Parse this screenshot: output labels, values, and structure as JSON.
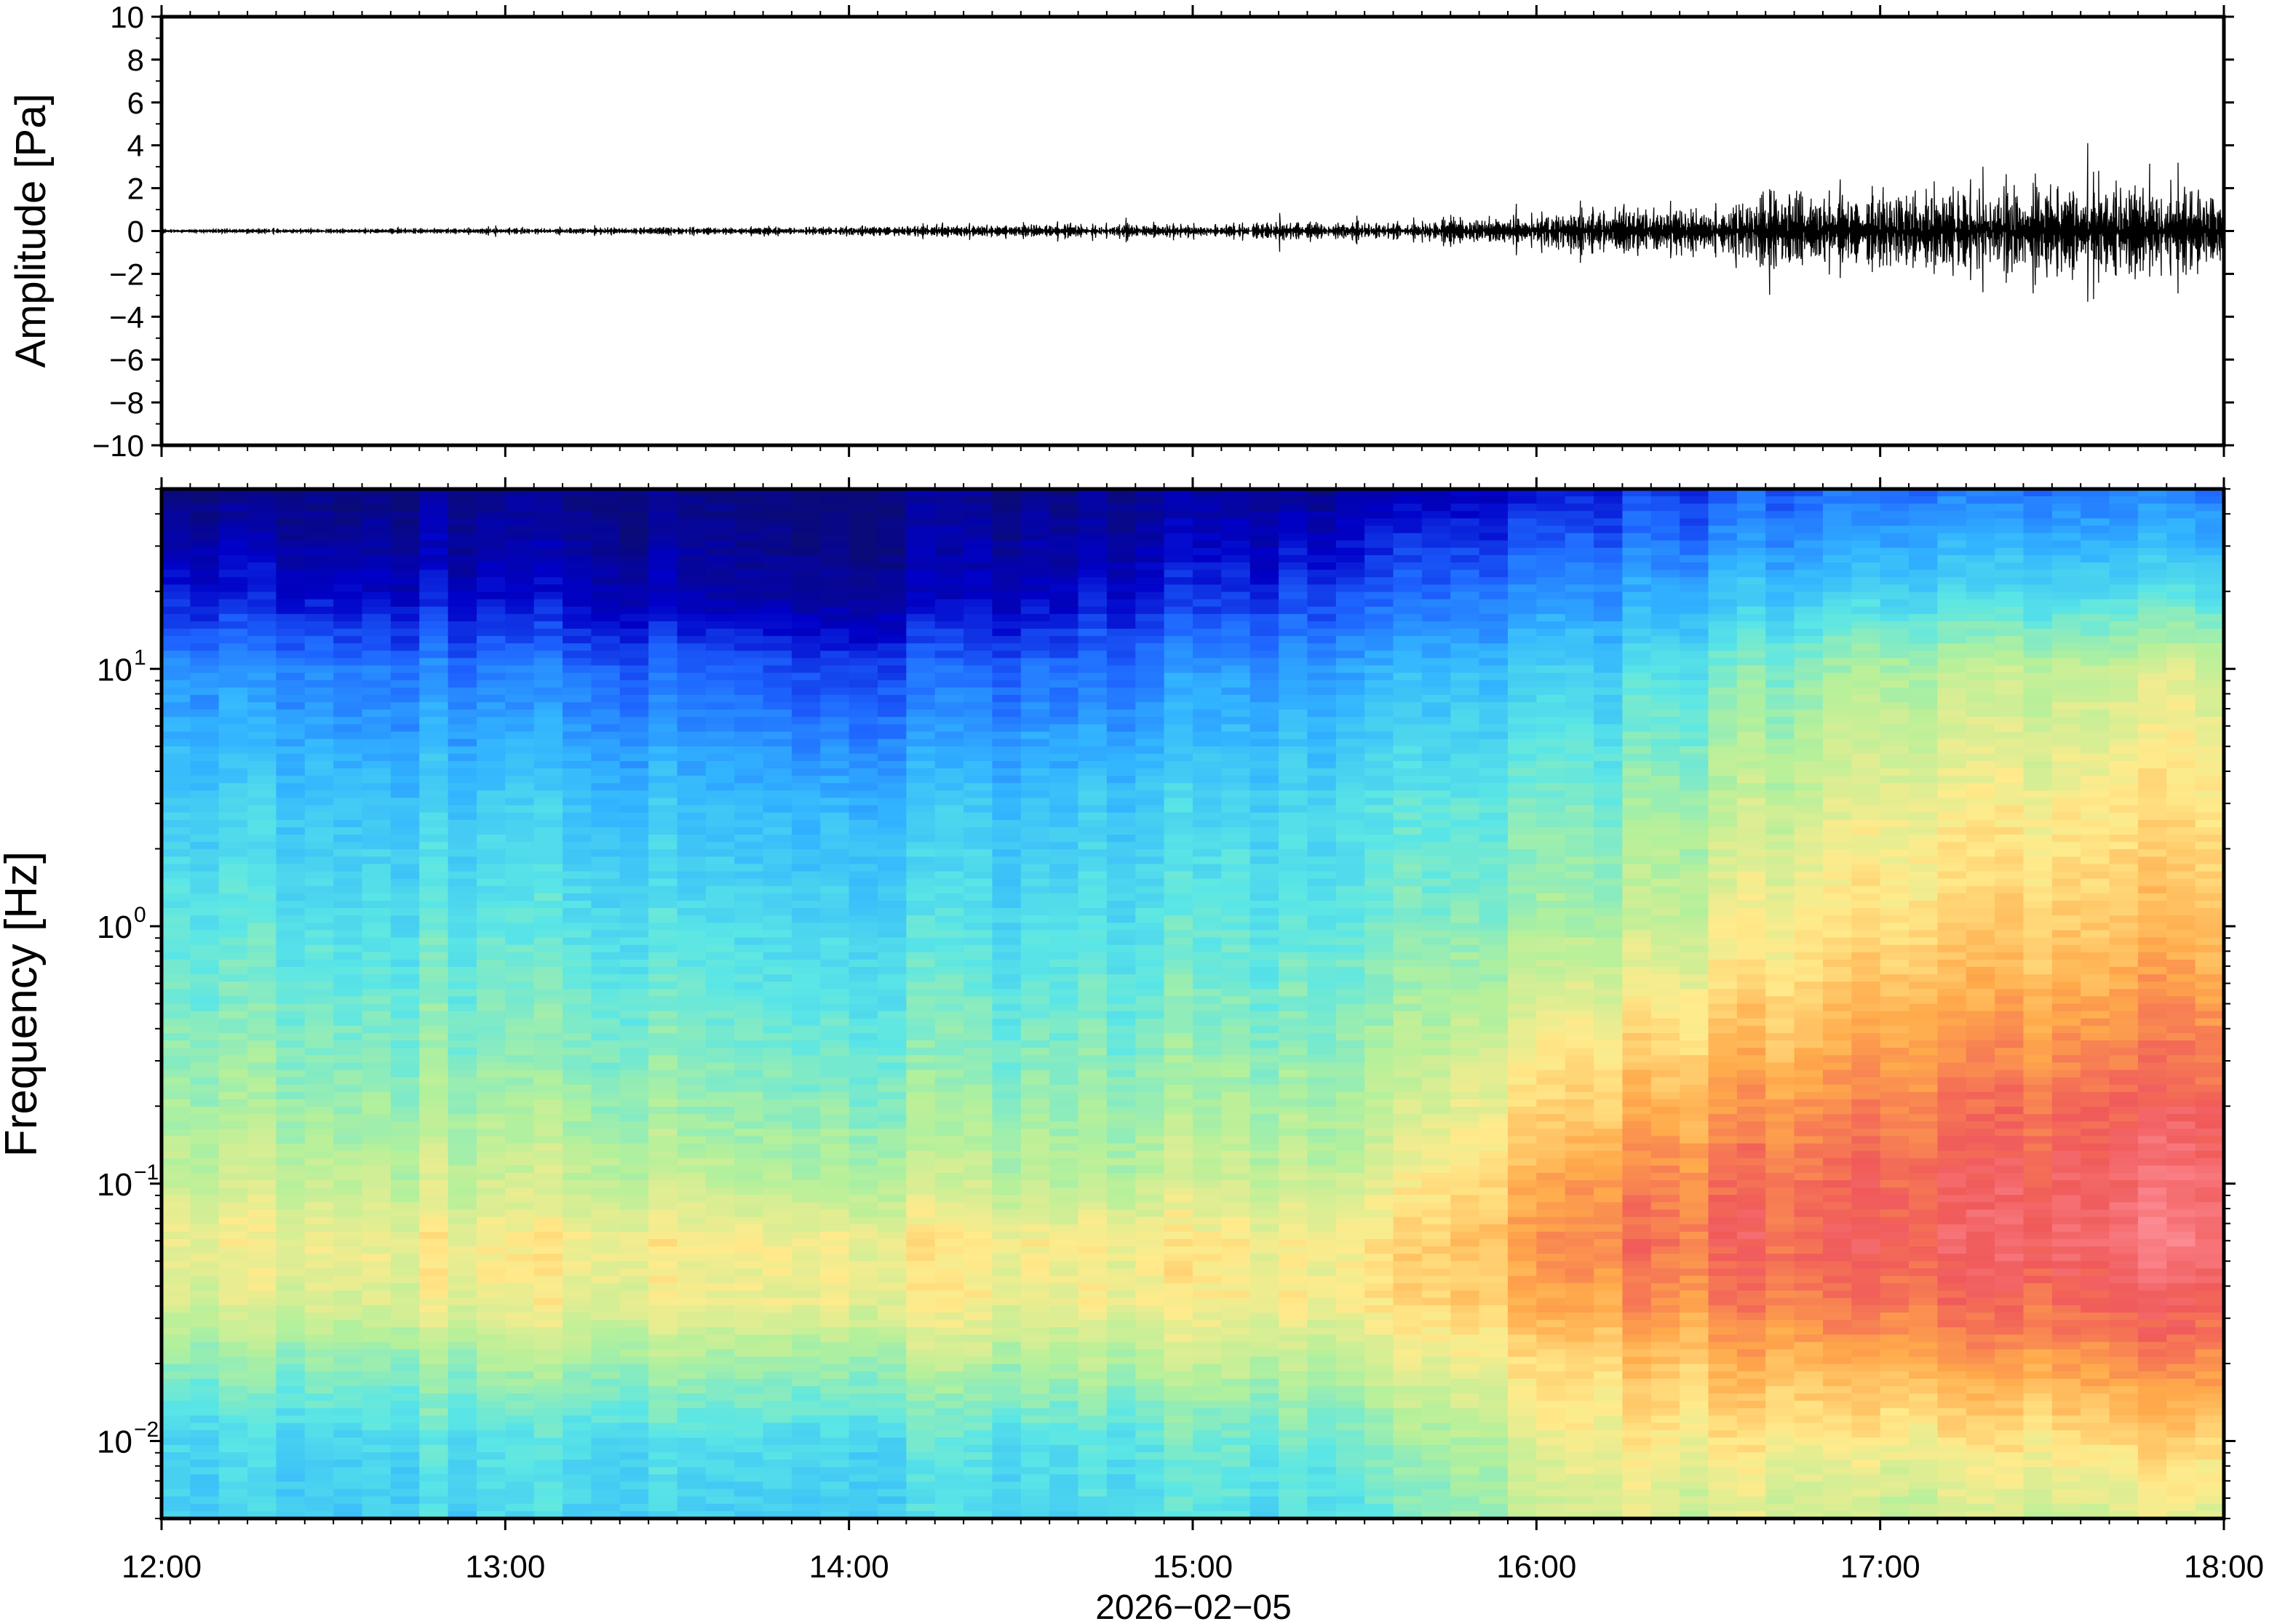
{
  "chart_data": [
    {
      "type": "line",
      "title": "",
      "xlabel": "",
      "ylabel": "Amplitude [Pa]",
      "ylim": [
        -10,
        10
      ],
      "y_ticks": [
        10,
        8,
        6,
        4,
        2,
        0,
        -2,
        -4,
        -6,
        -8,
        -10
      ],
      "y_tick_labels": [
        "10",
        "8",
        "6",
        "4",
        "2",
        "0",
        "−2",
        "−4",
        "−6",
        "−8",
        "−10"
      ],
      "x_range": [
        "12:00",
        "18:00"
      ],
      "grid": false,
      "series": [
        {
          "color": "#000000",
          "x_hours": [
            12.0,
            12.5,
            13.0,
            13.5,
            14.0,
            14.5,
            15.0,
            15.5,
            15.75,
            16.0,
            16.14,
            16.3,
            16.5,
            16.62,
            16.8,
            17.0,
            17.2,
            17.4,
            17.6,
            17.8,
            18.0
          ],
          "envelope_pa": [
            0.1,
            0.1,
            0.15,
            0.15,
            0.2,
            0.3,
            0.3,
            0.4,
            0.5,
            0.6,
            1.0,
            1.0,
            0.8,
            1.6,
            1.6,
            1.7,
            1.9,
            2.0,
            2.1,
            2.1,
            2.2
          ],
          "peak_max_pa": 4.1,
          "peak_min_pa": -3.3
        }
      ]
    },
    {
      "type": "heatmap",
      "title": "",
      "xlabel": "2026−02−05",
      "ylabel": "Frequency [Hz]",
      "y_scale": "log",
      "ylim": [
        0.005,
        50
      ],
      "y_ticks": [
        0.01,
        0.1,
        1,
        10
      ],
      "y_tick_labels": [
        {
          "base": "10",
          "exp": "−2"
        },
        {
          "base": "10",
          "exp": "−1"
        },
        {
          "base": "10",
          "exp": "0"
        },
        {
          "base": "10",
          "exp": "1"
        }
      ],
      "x_range": [
        "12:00",
        "18:00"
      ],
      "x_ticks": [
        "12:00",
        "13:00",
        "14:00",
        "15:00",
        "16:00",
        "17:00",
        "18:00"
      ],
      "colormap": "jet",
      "colormap_stops": [
        "#0a0a78",
        "#0000c8",
        "#1e64ff",
        "#32b4ff",
        "#5ae6e6",
        "#b4f09b",
        "#ffeb8c",
        "#ffaa4b",
        "#f05a5a",
        "#ff96a0"
      ],
      "grid": false,
      "level_profile": {
        "freq_hz": [
          0.005,
          0.01,
          0.02,
          0.035,
          0.06,
          0.1,
          0.2,
          0.5,
          1,
          3,
          10,
          20,
          50
        ],
        "hour_12": [
          0.4,
          0.42,
          0.52,
          0.62,
          0.65,
          0.6,
          0.55,
          0.5,
          0.46,
          0.4,
          0.3,
          0.15,
          0.02
        ],
        "hour_14": [
          0.4,
          0.43,
          0.55,
          0.65,
          0.66,
          0.58,
          0.52,
          0.46,
          0.42,
          0.35,
          0.2,
          0.05,
          0.02
        ],
        "hour_15_5": [
          0.44,
          0.48,
          0.58,
          0.66,
          0.66,
          0.6,
          0.55,
          0.5,
          0.46,
          0.42,
          0.32,
          0.2,
          0.05
        ],
        "hour_16_2": [
          0.62,
          0.66,
          0.72,
          0.8,
          0.84,
          0.82,
          0.74,
          0.64,
          0.56,
          0.5,
          0.4,
          0.3,
          0.15
        ],
        "hour_17": [
          0.58,
          0.66,
          0.78,
          0.86,
          0.9,
          0.88,
          0.84,
          0.76,
          0.7,
          0.64,
          0.56,
          0.4,
          0.25
        ],
        "hour_18": [
          0.62,
          0.7,
          0.82,
          0.88,
          0.94,
          0.93,
          0.88,
          0.8,
          0.74,
          0.68,
          0.6,
          0.42,
          0.25
        ]
      }
    }
  ]
}
